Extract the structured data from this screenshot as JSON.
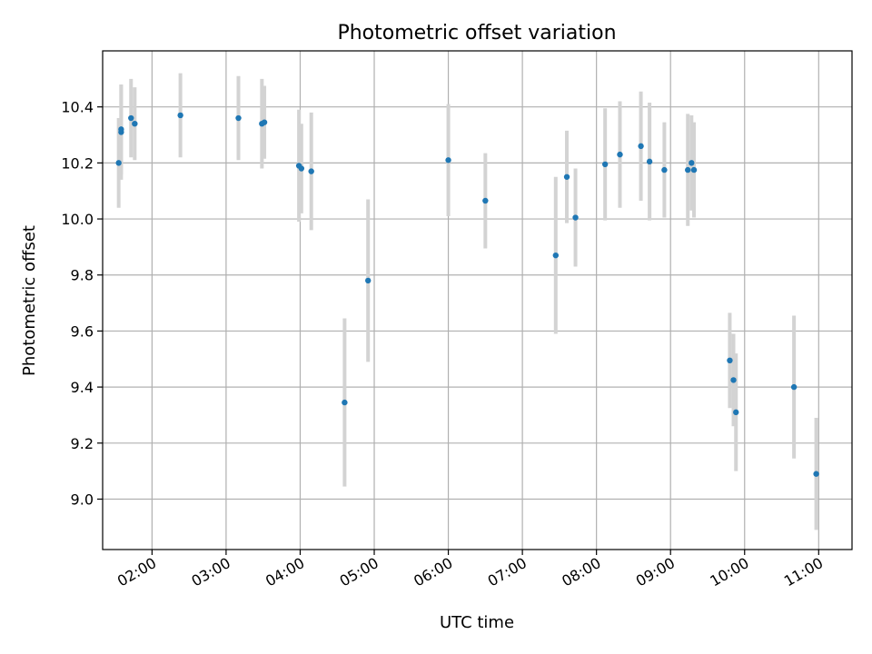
{
  "chart_data": {
    "type": "scatter",
    "title": "Photometric offset variation",
    "xlabel": "UTC time",
    "ylabel": "Photometric offset",
    "xlim": [
      "01:20",
      "11:27"
    ],
    "ylim": [
      8.82,
      10.6
    ],
    "x_ticks": [
      "02:00",
      "03:00",
      "04:00",
      "05:00",
      "06:00",
      "07:00",
      "08:00",
      "09:00",
      "10:00",
      "11:00"
    ],
    "y_ticks": [
      "9.0",
      "9.2",
      "9.4",
      "9.6",
      "9.8",
      "10.0",
      "10.2",
      "10.4"
    ],
    "grid": true,
    "marker_color": "#1f77b4",
    "errorbar_color": "#d3d3d3",
    "series": [
      {
        "points": [
          {
            "x": "01:33",
            "y": 10.2,
            "err": 0.16
          },
          {
            "x": "01:35",
            "y": 10.31,
            "err": 0.17
          },
          {
            "x": "01:35",
            "y": 10.32,
            "err": 0.16
          },
          {
            "x": "01:43",
            "y": 10.36,
            "err": 0.14
          },
          {
            "x": "01:46",
            "y": 10.34,
            "err": 0.13
          },
          {
            "x": "02:23",
            "y": 10.37,
            "err": 0.15
          },
          {
            "x": "03:10",
            "y": 10.36,
            "err": 0.15
          },
          {
            "x": "03:29",
            "y": 10.34,
            "err": 0.16
          },
          {
            "x": "03:31",
            "y": 10.345,
            "err": 0.13
          },
          {
            "x": "03:59",
            "y": 10.19,
            "err": 0.2
          },
          {
            "x": "04:01",
            "y": 10.18,
            "err": 0.16
          },
          {
            "x": "04:09",
            "y": 10.17,
            "err": 0.21
          },
          {
            "x": "04:36",
            "y": 9.345,
            "err": 0.3
          },
          {
            "x": "04:55",
            "y": 9.78,
            "err": 0.29
          },
          {
            "x": "06:00",
            "y": 10.21,
            "err": 0.2
          },
          {
            "x": "06:30",
            "y": 10.065,
            "err": 0.17
          },
          {
            "x": "07:27",
            "y": 9.87,
            "err": 0.28
          },
          {
            "x": "07:36",
            "y": 10.15,
            "err": 0.165
          },
          {
            "x": "07:43",
            "y": 10.005,
            "err": 0.175
          },
          {
            "x": "08:07",
            "y": 10.195,
            "err": 0.2
          },
          {
            "x": "08:19",
            "y": 10.23,
            "err": 0.19
          },
          {
            "x": "08:36",
            "y": 10.26,
            "err": 0.195
          },
          {
            "x": "08:43",
            "y": 10.205,
            "err": 0.21
          },
          {
            "x": "08:55",
            "y": 10.175,
            "err": 0.17
          },
          {
            "x": "09:14",
            "y": 10.175,
            "err": 0.2
          },
          {
            "x": "09:17",
            "y": 10.2,
            "err": 0.17
          },
          {
            "x": "09:19",
            "y": 10.175,
            "err": 0.17
          },
          {
            "x": "09:48",
            "y": 9.495,
            "err": 0.17
          },
          {
            "x": "09:51",
            "y": 9.425,
            "err": 0.165
          },
          {
            "x": "09:53",
            "y": 9.31,
            "err": 0.21
          },
          {
            "x": "10:40",
            "y": 9.4,
            "err": 0.255
          },
          {
            "x": "10:58",
            "y": 9.09,
            "err": 0.2
          }
        ]
      }
    ]
  }
}
